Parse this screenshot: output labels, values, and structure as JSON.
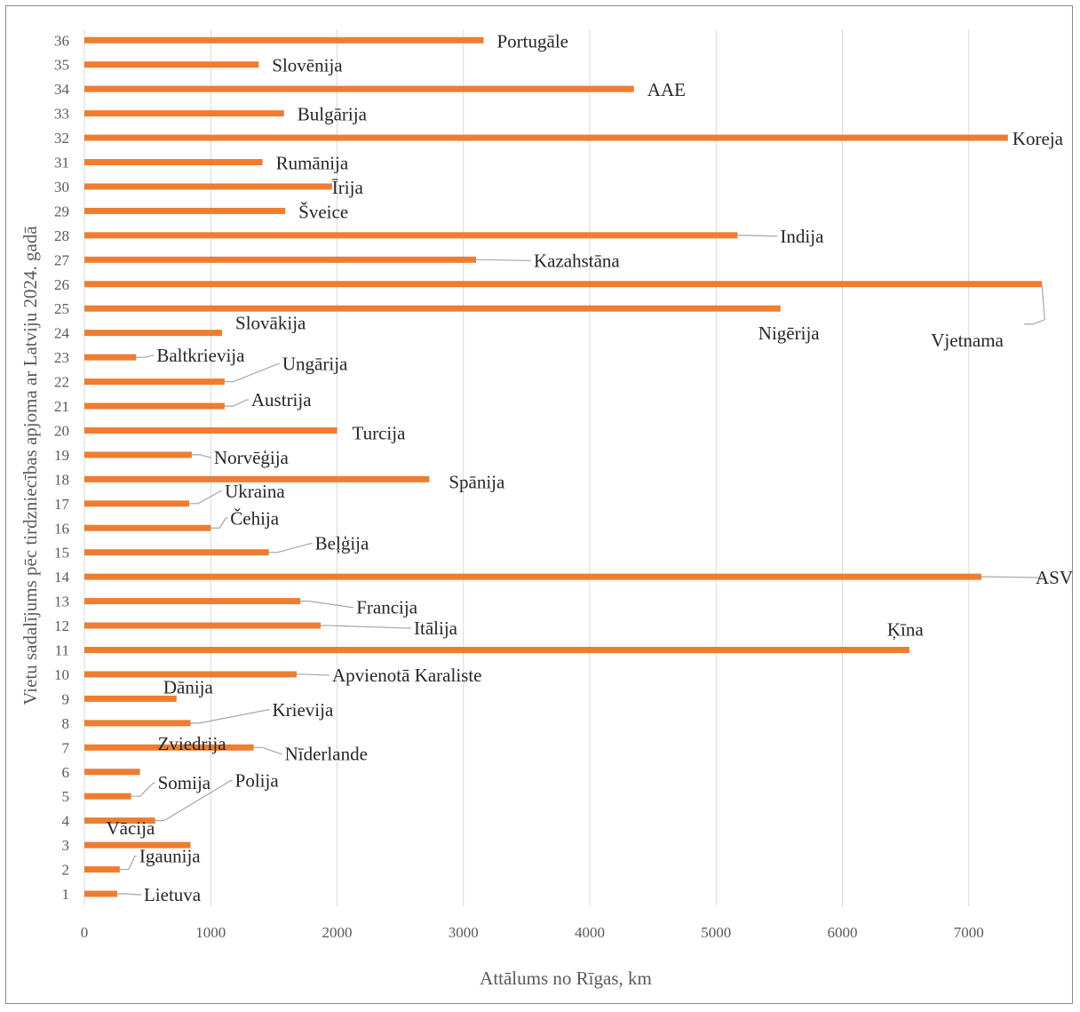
{
  "chart_data": {
    "type": "bar",
    "orientation": "horizontal",
    "title": "",
    "xlabel": "Attālums no Rīgas, km",
    "ylabel": "Vietu sadalījums pēc tirdzniecības apjoma ar Latviju 2024. gadā",
    "xlim": [
      0,
      7600
    ],
    "xticks": [
      "0",
      "1000",
      "2000",
      "3000",
      "4000",
      "5000",
      "6000",
      "7000"
    ],
    "grid": "vertical",
    "bar_color": "#ED7D31",
    "grid_color": "#d9d9d9",
    "leader_color": "#a6a6a6",
    "categories": [
      "1",
      "2",
      "3",
      "4",
      "5",
      "6",
      "7",
      "8",
      "9",
      "10",
      "11",
      "12",
      "13",
      "14",
      "15",
      "16",
      "17",
      "18",
      "19",
      "20",
      "21",
      "22",
      "23",
      "24",
      "25",
      "26",
      "27",
      "28",
      "29",
      "30",
      "31",
      "32",
      "33",
      "34",
      "35",
      "36"
    ],
    "labels": [
      "Lietuva",
      "Igaunija",
      "Vācija",
      "Polija",
      "Somija",
      "Zviedrija",
      "Nīderlande",
      "Krievija",
      "Dānija",
      "Apvienotā Karaliste",
      "Ķīna",
      "Itālija",
      "Francija",
      "ASV",
      "Beļģija",
      "Čehija",
      "Ukraina",
      "Spānija",
      "Norvēģija",
      "Turcija",
      "Austrija",
      "Ungārija",
      "Baltkrievija",
      "Slovākija",
      "Nigērija",
      "Vjetnama",
      "Kazahstāna",
      "Indija",
      "Šveice",
      "Īrija",
      "Rumānija",
      "Koreja",
      "Bulgārija",
      "AAE",
      "Slovēnija",
      "Portugāle"
    ],
    "values": [
      260,
      280,
      840,
      560,
      370,
      440,
      1340,
      840,
      730,
      1680,
      6530,
      1870,
      1710,
      7100,
      1460,
      1000,
      830,
      2730,
      850,
      2000,
      1110,
      1110,
      410,
      1090,
      5510,
      7580,
      3100,
      5170,
      1590,
      1960,
      1410,
      7310,
      1580,
      4350,
      1380,
      3160
    ]
  }
}
